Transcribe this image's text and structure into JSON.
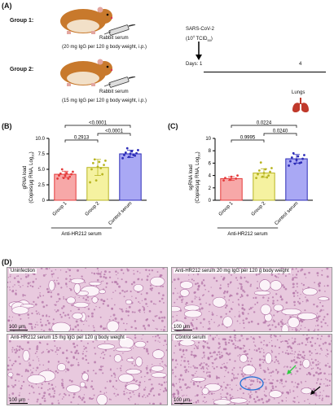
{
  "panel_a": {
    "letter": "(A)",
    "group1_label": "Group 1:",
    "group1_serum": "Rabbit serum",
    "group1_dose": "(20 mg IgG per 120 g body weight, i.p.)",
    "group2_label": "Group 2:",
    "group2_serum": "Rabbit serum",
    "group2_dose": "(15 mg IgG per 120 g body weight, i.p.)",
    "virus": "SARS-CoV-2",
    "dose_main": "(10",
    "dose_exp": "4",
    "dose_unit": " TCID",
    "dose_sub": "50",
    "dose_close": ")",
    "days_label": "Days: 1",
    "day_end": "4",
    "lungs_label": "Lungs",
    "colors": {
      "timeline": "#000000",
      "lungs": "#c0392b",
      "hamster": "#c8792c"
    }
  },
  "chart_data": [
    {
      "type": "bar",
      "panel": "(B)",
      "categories": [
        "Group 1",
        "Group 2",
        "Control serum"
      ],
      "ylabel_line1": "gRNA load",
      "ylabel_line2": "(Copies/μg RNA, Log",
      "ylabel_sub": "10",
      "ylabel_close": ")",
      "yticks": [
        "0",
        "2.5",
        "5.0",
        "7.5",
        "10.0"
      ],
      "ylim": [
        0,
        10
      ],
      "values": [
        4.2,
        5.3,
        7.5
      ],
      "errors": [
        0.5,
        1.3,
        0.6
      ],
      "points": [
        [
          3.5,
          3.6,
          3.8,
          4.0,
          4.0,
          4.2,
          4.3,
          4.4,
          4.6,
          5.0,
          3.5
        ],
        [
          2.9,
          3.2,
          4.2,
          5.0,
          5.4,
          5.7,
          6.0,
          6.2,
          6.4,
          6.6,
          5.2
        ],
        [
          6.8,
          7.0,
          7.2,
          7.3,
          7.5,
          7.6,
          7.7,
          7.9,
          8.1,
          8.4,
          7.3
        ]
      ],
      "bar_colors": [
        "#f7a8a8",
        "#f5f2a0",
        "#a9a8f4"
      ],
      "edge_colors": [
        "#e53b3b",
        "#b8b522",
        "#2d2db8"
      ],
      "comparisons": [
        {
          "from": 0,
          "to": 1,
          "label": "0.2913"
        },
        {
          "from": 1,
          "to": 2,
          "label": "<0.0001"
        },
        {
          "from": 0,
          "to": 2,
          "label": "<0.0001"
        }
      ],
      "group_label": "Anti-HR212 serum"
    },
    {
      "type": "bar",
      "panel": "(C)",
      "categories": [
        "Group 1",
        "Group 2",
        "Control serum"
      ],
      "ylabel_line1": "sgRNA load",
      "ylabel_line2": "(Copies/μg RNA, Log",
      "ylabel_sub": "10",
      "ylabel_close": ")",
      "yticks": [
        "0",
        "2",
        "4",
        "6",
        "8",
        "10"
      ],
      "ylim": [
        0,
        10
      ],
      "values": [
        3.5,
        4.4,
        6.7
      ],
      "errors": [
        0.3,
        0.7,
        0.7
      ],
      "points": [
        [
          3.2,
          3.3,
          3.5,
          3.6,
          3.8,
          4.0
        ],
        [
          3.6,
          3.8,
          4.0,
          4.2,
          4.4,
          4.6,
          4.8,
          5.0,
          5.2,
          6.1,
          3.7
        ],
        [
          5.6,
          5.9,
          6.1,
          6.3,
          6.5,
          6.7,
          6.9,
          7.1,
          7.3,
          7.6,
          6.0
        ]
      ],
      "bar_colors": [
        "#f7a8a8",
        "#f5f2a0",
        "#a9a8f4"
      ],
      "edge_colors": [
        "#e53b3b",
        "#b8b522",
        "#2d2db8"
      ],
      "comparisons": [
        {
          "from": 0,
          "to": 1,
          "label": "0.9995"
        },
        {
          "from": 1,
          "to": 2,
          "label": "0.0240"
        },
        {
          "from": 0,
          "to": 2,
          "label": "0.0224"
        }
      ],
      "group_label": "Anti-HR212 serum"
    }
  ],
  "panel_d": {
    "letter": "(D)",
    "images": [
      {
        "caption": "Uninfection",
        "scale": "100 μm"
      },
      {
        "caption": "Anti-HR212 serum 20 mg IgG per 120 g body weight",
        "scale": "100 μm"
      },
      {
        "caption": "Anti-HR212 serum 15 mg IgG per 120 g body weight",
        "scale": "100 μm"
      },
      {
        "caption": "Control serum",
        "scale": "100 μm"
      }
    ],
    "colors": {
      "tissue": "#e8c9de",
      "stain": "#b272a6",
      "circle": "#1f6fd6",
      "green_arrow": "#2ecc40",
      "black_arrow": "#000000"
    }
  }
}
